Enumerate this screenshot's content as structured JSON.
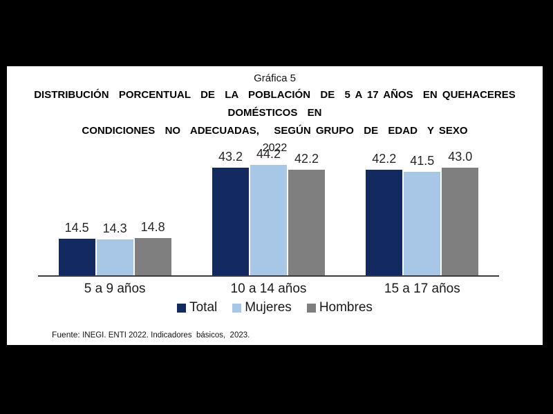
{
  "header": {
    "figure_label": "Gráfica 5",
    "title_line1": "DISTRIBUCIÓN  PORCENTUAL  DE  LA  POBLACIÓN  DE  5 A 17 AÑOS  EN QUEHACERES  DOMÉSTICOS  EN",
    "title_line2": "CONDICIONES  NO  ADECUADAS,   SEGÚN GRUPO  DE  EDAD  Y SEXO",
    "year": "2022"
  },
  "chart_data": {
    "type": "bar",
    "title": "Distribución porcentual de la población de 5 a 17 años en quehaceres domésticos en condiciones no adecuadas, según grupo de edad y sexo, 2022",
    "categories": [
      "5 a 9 años",
      "10 a 14 años",
      "15 a 17 años"
    ],
    "series": [
      {
        "name": "Total",
        "color": "#132A60",
        "values": [
          14.5,
          43.2,
          42.2
        ]
      },
      {
        "name": "Mujeres",
        "color": "#A8C7E7",
        "values": [
          14.3,
          44.2,
          41.5
        ]
      },
      {
        "name": "Hombres",
        "color": "#7F7F7F",
        "values": [
          14.8,
          42.2,
          43.0
        ]
      }
    ],
    "ylim": [
      0,
      55.5
    ],
    "xlabel": "",
    "ylabel": "",
    "grid": false,
    "legend_position": "bottom",
    "value_labels_shown": true
  },
  "footer": {
    "label": "Fuente:",
    "text": "INEGI. ENTI 2022. Indicadores  básicos,  2023."
  },
  "colors": {
    "background": "#000000",
    "page": "#ffffff",
    "axis": "#3a3a3a",
    "total": "#132A60",
    "mujeres": "#A8C7E7",
    "hombres": "#7F7F7F"
  }
}
